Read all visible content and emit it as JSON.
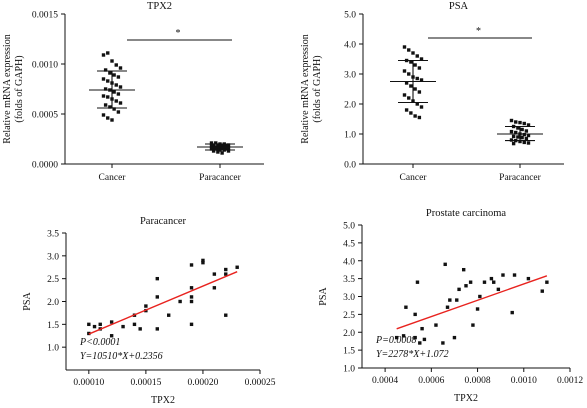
{
  "chart_data": [
    {
      "type": "scatter",
      "subtype": "dot-plot",
      "title": "TPX2",
      "ylabel": [
        "Relative mRNA expression",
        "(folds of GAPH)"
      ],
      "categories": [
        "Cancer",
        "Paracancer"
      ],
      "ylim": [
        0,
        0.0015
      ],
      "yticks": [
        "0.0000",
        "0.0005",
        "0.0010",
        "0.0015"
      ],
      "series": [
        {
          "values": [
            0.00109,
            0.00111,
            0.00103,
            0.00099,
            0.00096,
            0.00094,
            0.00091,
            0.00089,
            0.00087,
            0.00085,
            0.00083,
            0.00081,
            0.00079,
            0.00077,
            0.00075,
            0.00074,
            0.00072,
            0.0007,
            0.00068,
            0.00067,
            0.00065,
            0.00063,
            0.00061,
            0.00059,
            0.00057,
            0.00055,
            0.00052,
            0.00049,
            0.00046,
            0.00044
          ],
          "mean": 0.00074,
          "sd_low": 0.00056,
          "sd_high": 0.00093
        },
        {
          "values": [
            0.00021,
            0.00021,
            0.0002,
            0.0002,
            0.00019,
            0.00019,
            0.00019,
            0.00018,
            0.00018,
            0.00018,
            0.00017,
            0.00017,
            0.00017,
            0.00016,
            0.00016,
            0.00016,
            0.00016,
            0.00015,
            0.00015,
            0.00015,
            0.00014,
            0.00014,
            0.00013,
            0.00013,
            0.00012,
            0.00011
          ],
          "mean": 0.00017,
          "sd_low": 0.00014,
          "sd_high": 0.0002
        }
      ],
      "significance": "*"
    },
    {
      "type": "scatter",
      "subtype": "dot-plot",
      "title": "PSA",
      "ylabel": [
        "Relative mRNA expression",
        "(folds of GAPH)"
      ],
      "categories": [
        "Cancer",
        "Paracancer"
      ],
      "ylim": [
        0,
        5
      ],
      "yticks": [
        "0.0",
        "1.0",
        "2.0",
        "3.0",
        "4.0",
        "5.0"
      ],
      "series": [
        {
          "values": [
            3.9,
            3.8,
            3.7,
            3.6,
            3.5,
            3.45,
            3.4,
            3.3,
            3.2,
            3.1,
            3.0,
            2.9,
            2.85,
            2.8,
            2.7,
            2.6,
            2.5,
            2.4,
            2.3,
            2.2,
            2.1,
            2.0,
            1.9,
            1.8,
            1.7,
            1.6,
            1.55
          ],
          "mean": 2.75,
          "sd_low": 2.05,
          "sd_high": 3.45
        },
        {
          "values": [
            1.45,
            1.4,
            1.38,
            1.35,
            1.3,
            1.25,
            1.2,
            1.15,
            1.1,
            1.08,
            1.05,
            1.0,
            0.98,
            0.95,
            0.92,
            0.9,
            0.88,
            0.85,
            0.8,
            0.78,
            0.75,
            0.72,
            0.7,
            0.68
          ],
          "mean": 1.0,
          "sd_low": 0.78,
          "sd_high": 1.25
        }
      ],
      "significance": "*"
    },
    {
      "type": "scatter",
      "title": "Paracancer",
      "xlabel": "TPX2",
      "ylabel": "PSA",
      "xlim": [
        8e-05,
        0.00025
      ],
      "ylim": [
        0.5,
        3.5
      ],
      "xticks": [
        "0.00010",
        "0.00015",
        "0.00020",
        "0.00025"
      ],
      "yticks": [
        "1.0",
        "1.5",
        "2.0",
        "2.5",
        "3.0",
        "3.5"
      ],
      "points": [
        [
          0.0001,
          1.5
        ],
        [
          0.0001,
          1.3
        ],
        [
          0.000105,
          1.45
        ],
        [
          0.00011,
          1.5
        ],
        [
          0.00011,
          1.4
        ],
        [
          0.00012,
          1.25
        ],
        [
          0.00012,
          1.55
        ],
        [
          0.00013,
          1.45
        ],
        [
          0.00014,
          1.7
        ],
        [
          0.00014,
          1.5
        ],
        [
          0.000145,
          1.4
        ],
        [
          0.00015,
          1.8
        ],
        [
          0.00015,
          1.9
        ],
        [
          0.00016,
          2.1
        ],
        [
          0.00016,
          2.5
        ],
        [
          0.00016,
          1.4
        ],
        [
          0.00017,
          1.7
        ],
        [
          0.00018,
          2.0
        ],
        [
          0.00019,
          2.0
        ],
        [
          0.00019,
          2.8
        ],
        [
          0.00019,
          2.3
        ],
        [
          0.00019,
          2.1
        ],
        [
          0.00019,
          1.5
        ],
        [
          0.0002,
          2.9
        ],
        [
          0.0002,
          2.85
        ],
        [
          0.00021,
          2.6
        ],
        [
          0.00021,
          2.3
        ],
        [
          0.00022,
          2.7
        ],
        [
          0.00022,
          2.6
        ],
        [
          0.00022,
          1.7
        ],
        [
          0.00023,
          2.75
        ]
      ],
      "fit": {
        "slope": 10510,
        "intercept": 0.2356,
        "color": "#e8231f"
      },
      "annotations": [
        "P<0.0001",
        "Y=10510*X+0.2356"
      ]
    },
    {
      "type": "scatter",
      "title": "Prostate carcinoma",
      "xlabel": "TPX2",
      "ylabel": "PSA",
      "xlim": [
        0.0003,
        0.0012
      ],
      "ylim": [
        1.0,
        5.0
      ],
      "xticks": [
        "0.0004",
        "0.0006",
        "0.0008",
        "0.0010",
        "0.0012"
      ],
      "yticks": [
        "1.0",
        "1.5",
        "2.0",
        "2.5",
        "3.0",
        "3.5",
        "4.0",
        "4.5",
        "5.0"
      ],
      "points": [
        [
          0.00045,
          1.85
        ],
        [
          0.00048,
          1.9
        ],
        [
          0.00049,
          2.7
        ],
        [
          0.00053,
          1.85
        ],
        [
          0.00053,
          2.5
        ],
        [
          0.00054,
          3.4
        ],
        [
          0.00055,
          1.7
        ],
        [
          0.00056,
          2.1
        ],
        [
          0.00057,
          1.8
        ],
        [
          0.00062,
          2.2
        ],
        [
          0.00065,
          1.7
        ],
        [
          0.00066,
          3.9
        ],
        [
          0.00067,
          2.7
        ],
        [
          0.00068,
          2.9
        ],
        [
          0.0007,
          1.85
        ],
        [
          0.00071,
          2.9
        ],
        [
          0.00072,
          3.2
        ],
        [
          0.00074,
          3.75
        ],
        [
          0.00075,
          3.3
        ],
        [
          0.00077,
          3.4
        ],
        [
          0.00078,
          2.2
        ],
        [
          0.0008,
          2.65
        ],
        [
          0.00081,
          3.0
        ],
        [
          0.00083,
          3.4
        ],
        [
          0.00086,
          3.5
        ],
        [
          0.00087,
          3.4
        ],
        [
          0.00089,
          3.2
        ],
        [
          0.00091,
          3.6
        ],
        [
          0.00095,
          2.55
        ],
        [
          0.00096,
          3.6
        ],
        [
          0.00102,
          3.5
        ],
        [
          0.00108,
          3.15
        ],
        [
          0.0011,
          3.4
        ]
      ],
      "fit": {
        "slope": 2278,
        "intercept": 1.072,
        "color": "#e8231f"
      },
      "annotations": [
        "P=0.0008",
        "Y=2278*X+1.072"
      ]
    }
  ]
}
